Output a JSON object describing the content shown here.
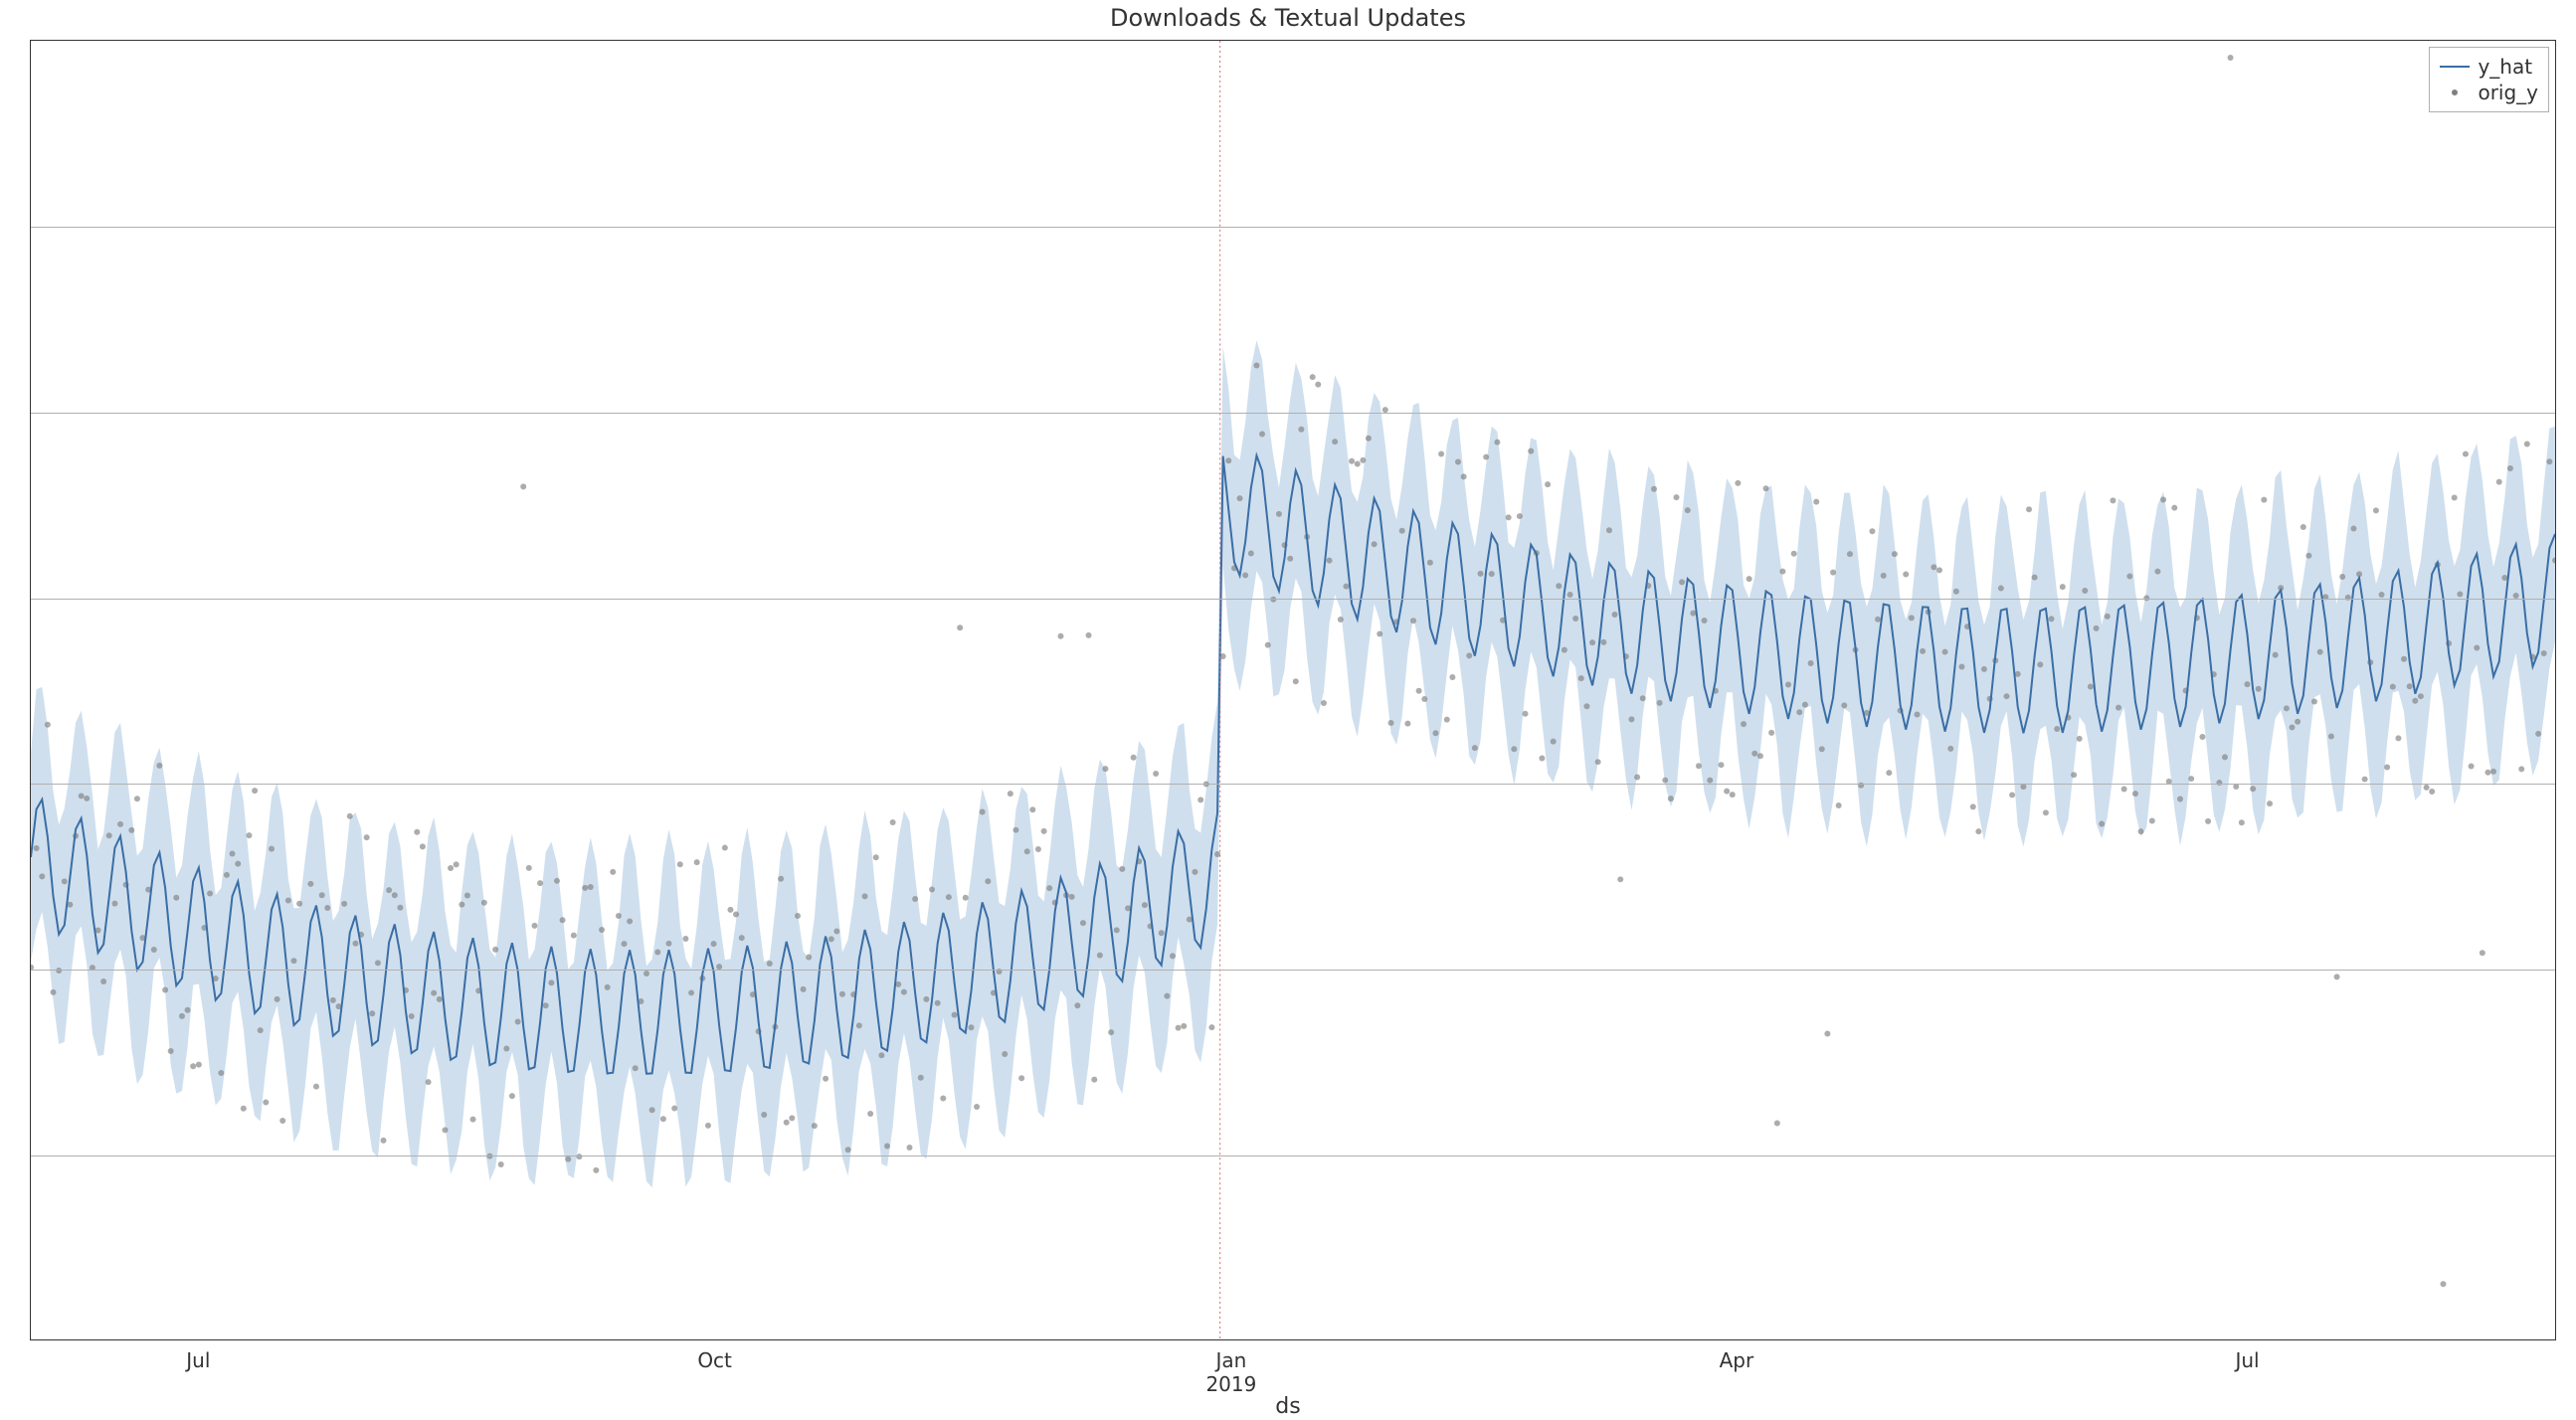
{
  "chart": {
    "type": "line-scatter-band",
    "title": "Downloads & Textual Updates",
    "title_fontsize": 24,
    "xlabel": "ds",
    "xlabel_fontsize": 22,
    "background_color": "#ffffff",
    "grid_color": "#b0b0b0",
    "border_color": "#333333",
    "tick_fontsize": 20,
    "xlim": [
      0,
      450
    ],
    "ylim": [
      -20,
      120
    ],
    "y_gridlines": [
      0,
      20,
      40,
      60,
      80,
      100
    ],
    "x_ticks": [
      {
        "x": 30,
        "label": "Jul"
      },
      {
        "x": 122,
        "label": "Oct"
      },
      {
        "x": 214,
        "label": "Jan",
        "major_label": "2019"
      },
      {
        "x": 304,
        "label": "Apr"
      },
      {
        "x": 395,
        "label": "Jul"
      }
    ],
    "changepoint": {
      "x": 212,
      "color": "#e06666",
      "dash": "2,3",
      "width": 1
    },
    "band": {
      "fill": "#a8c4e0",
      "opacity": 0.55
    },
    "line": {
      "color": "#3a6ea5",
      "width": 2
    },
    "scatter": {
      "color": "#808080",
      "opacity": 0.65,
      "radius": 3
    },
    "legend": {
      "position": "top-right",
      "border_color": "#b0b0b0",
      "items": [
        {
          "kind": "line",
          "color": "#3a6ea5",
          "label": "y_hat"
        },
        {
          "kind": "dot",
          "color": "#808080",
          "label": "orig_y"
        }
      ]
    },
    "series": {
      "n_line": 451,
      "line_trend_left": {
        "x0": 0,
        "y0": 32,
        "x1": 105,
        "y1": 15,
        "x2": 212,
        "y2": 30
      },
      "line_trend_right": {
        "x0": 212,
        "y0": 70,
        "x1": 300,
        "y1": 55,
        "x2": 450,
        "y2": 60
      },
      "weekly_amp": 7,
      "weekly_period": 7,
      "band_width": 12,
      "scatter_noise": 18,
      "scatter_outlier_prob": 0.04,
      "scatter_outlier_mag": 40
    }
  }
}
